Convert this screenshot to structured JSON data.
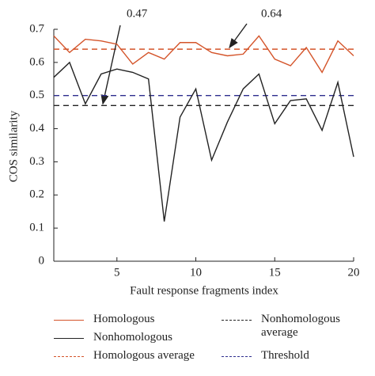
{
  "chart_data": {
    "type": "line",
    "x_label": "Fault response fragments index",
    "y_label": "COS similarity",
    "x": [
      1,
      2,
      3,
      4,
      5,
      6,
      7,
      8,
      9,
      10,
      11,
      12,
      13,
      14,
      15,
      16,
      17,
      18,
      19,
      20
    ],
    "series": [
      {
        "name": "Homologous",
        "color": "#d4542a",
        "values": [
          0.68,
          0.63,
          0.67,
          0.665,
          0.655,
          0.595,
          0.63,
          0.61,
          0.66,
          0.66,
          0.63,
          0.62,
          0.625,
          0.68,
          0.61,
          0.59,
          0.645,
          0.57,
          0.665,
          0.62
        ]
      },
      {
        "name": "Nonhomologous",
        "color": "#222222",
        "values": [
          0.555,
          0.6,
          0.475,
          0.565,
          0.58,
          0.57,
          0.55,
          0.12,
          0.435,
          0.52,
          0.305,
          0.42,
          0.52,
          0.565,
          0.415,
          0.485,
          0.49,
          0.395,
          0.54,
          0.315
        ]
      }
    ],
    "hlines": [
      {
        "name": "Homologous average",
        "value": 0.64,
        "color": "#d4542a",
        "annotate": true
      },
      {
        "name": "Nonhomologous average",
        "value": 0.47,
        "color": "#222222",
        "annotate": true
      },
      {
        "name": "Threshold",
        "value": 0.5,
        "color": "#2e2e8f",
        "annotate": false
      }
    ],
    "xlim": [
      1,
      20
    ],
    "xticks": [
      5,
      10,
      15,
      20
    ],
    "ylim": [
      0,
      0.7
    ],
    "yticks": [
      0,
      0.1,
      0.2,
      0.3,
      0.4,
      0.5,
      0.6,
      0.7
    ]
  }
}
